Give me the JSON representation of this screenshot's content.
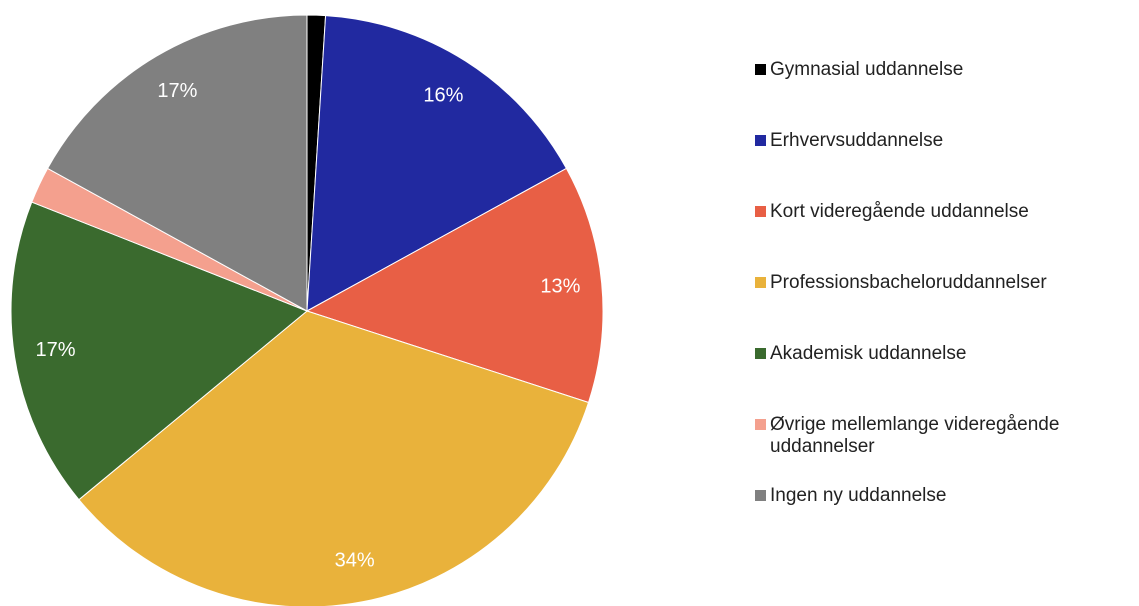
{
  "chart_data": {
    "type": "pie",
    "categories": [
      "Gymnasial uddannelse",
      "Erhvervsuddannelse",
      "Kort videregående uddannelse",
      "Professionsbacheloruddannelser",
      "Akademisk uddannelse",
      "Øvrige mellemlange videregående uddannelser",
      "Ingen ny uddannelse"
    ],
    "values": [
      1,
      16,
      13,
      34,
      17,
      2,
      17
    ],
    "value_labels": [
      null,
      "16%",
      "13%",
      "34%",
      "17%",
      null,
      "17%"
    ],
    "colors": [
      "#000000",
      "#2129a0",
      "#e85f45",
      "#e9b23b",
      "#3a6a2e",
      "#f4a08e",
      "#808080"
    ],
    "legend": "right"
  }
}
